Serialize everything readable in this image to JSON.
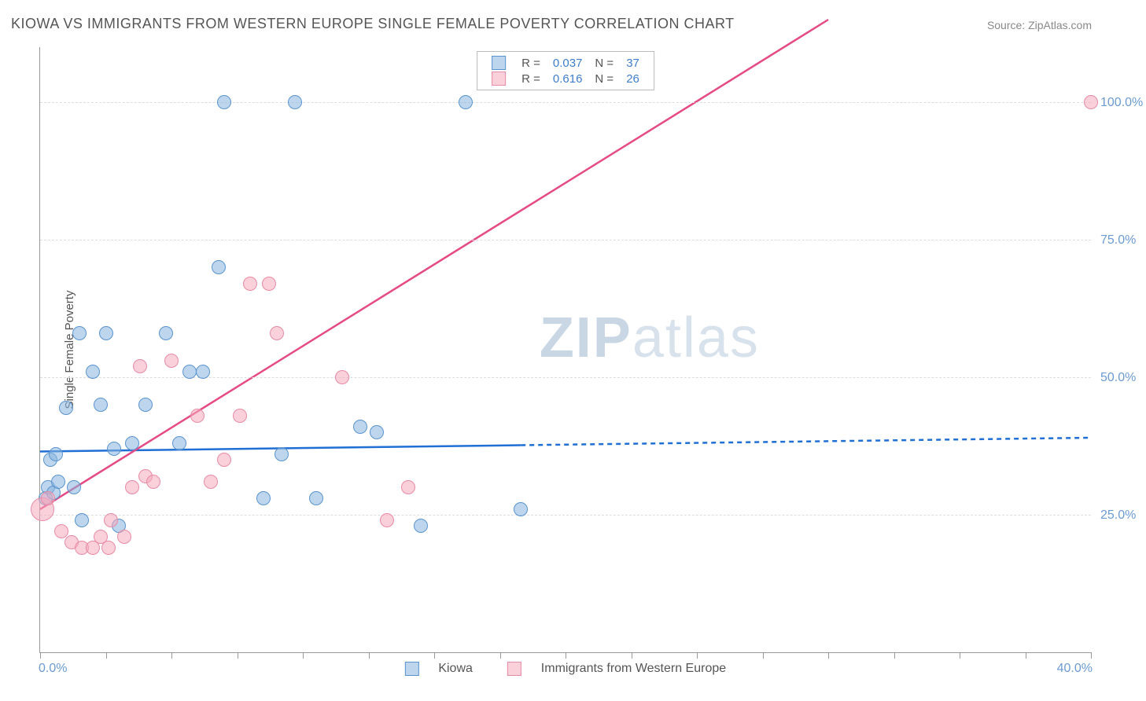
{
  "title": "KIOWA VS IMMIGRANTS FROM WESTERN EUROPE SINGLE FEMALE POVERTY CORRELATION CHART",
  "source": "Source: ZipAtlas.com",
  "ylabel": "Single Female Poverty",
  "watermark_bold": "ZIP",
  "watermark_light": "atlas",
  "chart": {
    "type": "scatter+regression",
    "xlim": [
      0,
      40
    ],
    "ylim": [
      0,
      110
    ],
    "x_ticks": [
      0,
      2.5,
      5,
      7.5,
      10,
      12.5,
      15,
      17.5,
      20,
      22.5,
      25,
      27.5,
      30,
      32.5,
      35,
      37.5,
      40
    ],
    "x_start_label": "0.0%",
    "x_end_label": "40.0%",
    "y_gridlines": [
      25,
      50,
      75,
      100
    ],
    "y_labels": [
      "25.0%",
      "50.0%",
      "75.0%",
      "100.0%"
    ],
    "background_color": "#ffffff",
    "grid_color": "#dddddd",
    "axis_color": "#999999",
    "point_radius_default": 8,
    "series": [
      {
        "name": "Kiowa",
        "key": "blue",
        "fill": "rgba(135,180,222,0.55)",
        "stroke": "#5a94cf",
        "line_color": "#1f6fd4",
        "R": "0.037",
        "N": "37",
        "regression": {
          "x1": 0,
          "y1": 36.5,
          "x2": 40,
          "y2": 39.0,
          "solid_until_x": 18.3
        },
        "points": [
          {
            "x": 0.2,
            "y": 28
          },
          {
            "x": 0.3,
            "y": 30
          },
          {
            "x": 0.4,
            "y": 35
          },
          {
            "x": 0.5,
            "y": 29
          },
          {
            "x": 0.6,
            "y": 36
          },
          {
            "x": 0.7,
            "y": 31
          },
          {
            "x": 1.0,
            "y": 44.5
          },
          {
            "x": 1.3,
            "y": 30
          },
          {
            "x": 1.5,
            "y": 58
          },
          {
            "x": 1.6,
            "y": 24
          },
          {
            "x": 2.0,
            "y": 51
          },
          {
            "x": 2.3,
            "y": 45
          },
          {
            "x": 2.5,
            "y": 58
          },
          {
            "x": 2.8,
            "y": 37
          },
          {
            "x": 3.0,
            "y": 23
          },
          {
            "x": 3.5,
            "y": 38
          },
          {
            "x": 4.0,
            "y": 45
          },
          {
            "x": 4.8,
            "y": 58
          },
          {
            "x": 5.3,
            "y": 38
          },
          {
            "x": 5.7,
            "y": 51
          },
          {
            "x": 6.2,
            "y": 51
          },
          {
            "x": 6.8,
            "y": 70
          },
          {
            "x": 7.0,
            "y": 100
          },
          {
            "x": 8.5,
            "y": 28
          },
          {
            "x": 9.2,
            "y": 36
          },
          {
            "x": 9.7,
            "y": 100
          },
          {
            "x": 10.5,
            "y": 28
          },
          {
            "x": 12.2,
            "y": 41
          },
          {
            "x": 12.8,
            "y": 40
          },
          {
            "x": 14.5,
            "y": 23
          },
          {
            "x": 16.2,
            "y": 100
          },
          {
            "x": 18.3,
            "y": 26
          }
        ]
      },
      {
        "name": "Immigrants from Western Europe",
        "key": "pink",
        "fill": "rgba(245,170,190,0.55)",
        "stroke": "#e88ba5",
        "line_color": "#e64a84",
        "R": "0.616",
        "N": "26",
        "regression": {
          "x1": 0,
          "y1": 26,
          "x2": 30,
          "y2": 115,
          "solid_until_x": 30
        },
        "points": [
          {
            "x": 0.1,
            "y": 26,
            "r": 14
          },
          {
            "x": 0.3,
            "y": 28
          },
          {
            "x": 0.8,
            "y": 22
          },
          {
            "x": 1.2,
            "y": 20
          },
          {
            "x": 1.6,
            "y": 19
          },
          {
            "x": 2.0,
            "y": 19
          },
          {
            "x": 2.3,
            "y": 21
          },
          {
            "x": 2.6,
            "y": 19
          },
          {
            "x": 2.7,
            "y": 24
          },
          {
            "x": 3.2,
            "y": 21
          },
          {
            "x": 3.5,
            "y": 30
          },
          {
            "x": 3.8,
            "y": 52
          },
          {
            "x": 4.0,
            "y": 32
          },
          {
            "x": 4.3,
            "y": 31
          },
          {
            "x": 5.0,
            "y": 53
          },
          {
            "x": 6.0,
            "y": 43
          },
          {
            "x": 6.5,
            "y": 31
          },
          {
            "x": 7.0,
            "y": 35
          },
          {
            "x": 7.6,
            "y": 43
          },
          {
            "x": 8.0,
            "y": 67
          },
          {
            "x": 8.7,
            "y": 67
          },
          {
            "x": 9.0,
            "y": 58
          },
          {
            "x": 11.5,
            "y": 50
          },
          {
            "x": 13.2,
            "y": 24
          },
          {
            "x": 14.0,
            "y": 30
          },
          {
            "x": 40.0,
            "y": 100
          }
        ]
      }
    ]
  },
  "legend_bottom": {
    "s1": "Kiowa",
    "s2": "Immigrants from Western Europe"
  }
}
